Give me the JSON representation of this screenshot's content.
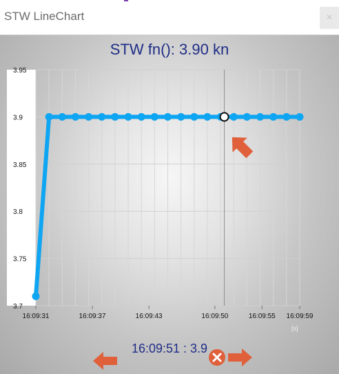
{
  "window": {
    "title": "STW LineChart",
    "close_glyph": "×"
  },
  "headline": "STW fn(): 3.90 kn",
  "cursor_readout": "16:09:51 : 3.9",
  "icons": {
    "close_icon": "close-icon",
    "left_arrow": "arrow-left-icon",
    "right_arrow": "arrow-right-icon",
    "reset_icon": "reset-x-icon",
    "pointer_arrow": "pointer-arrow-icon"
  },
  "colors": {
    "line": "#0ea5f2",
    "title": "#1f2d86",
    "arrow": "#e0603c"
  },
  "chart_data": {
    "type": "line",
    "title": "STW fn(): 3.90 kn",
    "x_unit": "[s]",
    "ylim": [
      3.7,
      3.95
    ],
    "y_ticks": [
      3.95,
      3.9,
      3.85,
      3.8,
      3.75,
      3.7
    ],
    "x_ticks": [
      "16:09:31",
      "16:09:37",
      "16:09:43",
      "16:09:50",
      "16:09:55",
      "16:09:59"
    ],
    "x_tick_seconds": [
      31,
      37,
      43,
      50,
      55,
      59
    ],
    "x_range_seconds": [
      31,
      59
    ],
    "grid": true,
    "series": [
      {
        "x_seconds": [
          31,
          32.4,
          33.8,
          35.2,
          36.6,
          38,
          39.4,
          40.8,
          42.2,
          43.6,
          45,
          46.4,
          47.8,
          49.2,
          50.6,
          52,
          53.4,
          54.8,
          56.2,
          57.6,
          59
        ],
        "values": [
          3.71,
          3.9,
          3.9,
          3.9,
          3.9,
          3.9,
          3.9,
          3.9,
          3.9,
          3.9,
          3.9,
          3.9,
          3.9,
          3.9,
          3.9,
          3.9,
          3.9,
          3.9,
          3.9,
          3.9,
          3.9
        ]
      }
    ],
    "cursor": {
      "x_seconds": 51,
      "value": 3.9,
      "label": "16:09:51 : 3.9"
    }
  }
}
